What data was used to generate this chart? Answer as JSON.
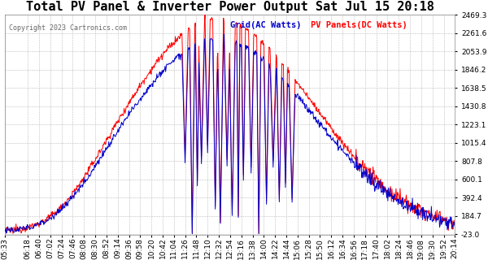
{
  "title": "Total PV Panel & Inverter Power Output Sat Jul 15 20:18",
  "copyright": "Copyright 2023 Cartronics.com",
  "legend_grid": "Grid(AC Watts)",
  "legend_pv": "PV Panels(DC Watts)",
  "grid_color": "#0000cc",
  "pv_color": "#ff0000",
  "background_color": "#ffffff",
  "grid_line_color": "#bbbbbb",
  "ymin": -23.0,
  "ymax": 2469.3,
  "yticks": [
    2469.3,
    2261.6,
    2053.9,
    1846.2,
    1638.5,
    1430.8,
    1223.1,
    1015.4,
    807.8,
    600.1,
    392.4,
    184.7,
    -23.0
  ],
  "title_fontsize": 11,
  "tick_fontsize": 6.5,
  "n_points": 880
}
